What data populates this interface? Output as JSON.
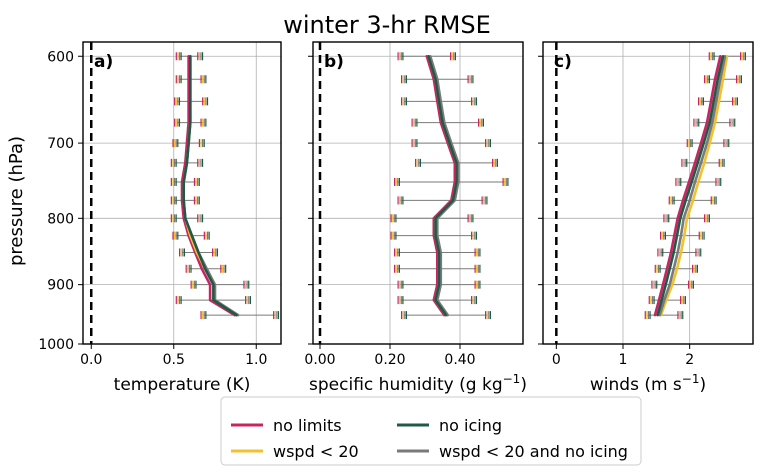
{
  "title": "winter 3-hr RMSE",
  "ylabel": "pressure (hPa)",
  "legend": {
    "placement": "bottom-center",
    "entries": [
      {
        "label": "no limits",
        "color": "#c8245f"
      },
      {
        "label": "no icing",
        "color": "#1f5a48"
      },
      {
        "label": "wspd < 20",
        "color": "#f2c12e"
      },
      {
        "label": "wspd < 20 and no icing",
        "color": "#7a7a7a"
      }
    ]
  },
  "chart_data": [
    {
      "type": "line",
      "panel_label": "a)",
      "xlabel": "temperature (K)",
      "ylabel": "pressure (hPa)",
      "xlim": [
        -0.05,
        1.15
      ],
      "ylim": [
        1000,
        585
      ],
      "y_scale": "log",
      "xticks": [
        "0.0",
        "0.5",
        "1.0"
      ],
      "yticks": [
        "600",
        "700",
        "800",
        "900",
        "1000"
      ],
      "grid": true,
      "y": [
        600,
        625,
        650,
        675,
        700,
        725,
        750,
        775,
        800,
        825,
        850,
        875,
        900,
        925,
        950
      ],
      "series": [
        {
          "name": "no limits",
          "values": [
            0.59,
            0.59,
            0.59,
            0.59,
            0.58,
            0.57,
            0.55,
            0.55,
            0.56,
            0.59,
            0.63,
            0.67,
            0.72,
            0.72,
            0.87
          ]
        },
        {
          "name": "no icing",
          "values": [
            0.6,
            0.6,
            0.6,
            0.6,
            0.59,
            0.58,
            0.56,
            0.56,
            0.57,
            0.61,
            0.65,
            0.69,
            0.74,
            0.74,
            0.88
          ]
        },
        {
          "name": "wspd < 20",
          "values": [
            0.6,
            0.6,
            0.6,
            0.6,
            0.59,
            0.58,
            0.56,
            0.56,
            0.57,
            0.6,
            0.64,
            0.69,
            0.74,
            0.74,
            0.89
          ]
        },
        {
          "name": "wspd < 20 and no icing",
          "values": [
            0.6,
            0.6,
            0.6,
            0.6,
            0.59,
            0.58,
            0.56,
            0.56,
            0.57,
            0.61,
            0.65,
            0.7,
            0.75,
            0.75,
            0.89
          ]
        }
      ],
      "ranges": [
        [
          0.53,
          0.66
        ],
        [
          0.53,
          0.68
        ],
        [
          0.52,
          0.69
        ],
        [
          0.52,
          0.68
        ],
        [
          0.51,
          0.67
        ],
        [
          0.5,
          0.66
        ],
        [
          0.5,
          0.64
        ],
        [
          0.5,
          0.64
        ],
        [
          0.5,
          0.66
        ],
        [
          0.51,
          0.7
        ],
        [
          0.55,
          0.75
        ],
        [
          0.59,
          0.8
        ],
        [
          0.62,
          0.94
        ],
        [
          0.53,
          0.95
        ],
        [
          0.68,
          1.12
        ]
      ],
      "dashed_reference_x": 0
    },
    {
      "type": "line",
      "panel_label": "b)",
      "xlabel": "specific humidity (g kg",
      "xlabel_sup": "−1",
      "xlabel_end": ")",
      "xlim": [
        -0.02,
        0.58
      ],
      "ylim": [
        1000,
        585
      ],
      "y_scale": "log",
      "xticks": [
        "0.00",
        "0.20",
        "0.40"
      ],
      "yticks": [
        "600",
        "700",
        "800",
        "900",
        "1000"
      ],
      "grid": true,
      "y": [
        600,
        625,
        650,
        675,
        700,
        725,
        750,
        775,
        800,
        825,
        850,
        875,
        900,
        925,
        950
      ],
      "series": [
        {
          "name": "no limits",
          "values": [
            0.305,
            0.325,
            0.335,
            0.345,
            0.365,
            0.385,
            0.385,
            0.375,
            0.325,
            0.325,
            0.335,
            0.335,
            0.335,
            0.325,
            0.355
          ]
        },
        {
          "name": "no icing",
          "values": [
            0.31,
            0.33,
            0.34,
            0.35,
            0.37,
            0.39,
            0.39,
            0.38,
            0.33,
            0.33,
            0.34,
            0.34,
            0.34,
            0.33,
            0.36
          ]
        },
        {
          "name": "wspd < 20",
          "values": [
            0.31,
            0.33,
            0.34,
            0.35,
            0.37,
            0.39,
            0.39,
            0.38,
            0.33,
            0.33,
            0.34,
            0.34,
            0.34,
            0.33,
            0.36
          ]
        },
        {
          "name": "wspd < 20 and no icing",
          "values": [
            0.315,
            0.335,
            0.345,
            0.355,
            0.375,
            0.395,
            0.395,
            0.385,
            0.335,
            0.335,
            0.345,
            0.345,
            0.345,
            0.335,
            0.365
          ]
        }
      ],
      "ranges": [
        [
          0.23,
          0.38
        ],
        [
          0.24,
          0.43
        ],
        [
          0.24,
          0.44
        ],
        [
          0.27,
          0.46
        ],
        [
          0.27,
          0.48
        ],
        [
          0.28,
          0.5
        ],
        [
          0.22,
          0.53
        ],
        [
          0.23,
          0.47
        ],
        [
          0.21,
          0.43
        ],
        [
          0.21,
          0.44
        ],
        [
          0.22,
          0.45
        ],
        [
          0.22,
          0.45
        ],
        [
          0.23,
          0.45
        ],
        [
          0.23,
          0.44
        ],
        [
          0.24,
          0.48
        ]
      ],
      "dashed_reference_x": 0
    },
    {
      "type": "line",
      "panel_label": "c)",
      "xlabel": "winds (m s",
      "xlabel_sup": "−1",
      "xlabel_end": ")",
      "xlim": [
        -0.2,
        2.95
      ],
      "ylim": [
        1000,
        585
      ],
      "y_scale": "log",
      "xticks": [
        "0",
        "1",
        "2"
      ],
      "yticks": [
        "600",
        "700",
        "800",
        "900",
        "1000"
      ],
      "grid": true,
      "y": [
        600,
        625,
        650,
        675,
        700,
        725,
        750,
        775,
        800,
        825,
        850,
        875,
        900,
        925,
        950
      ],
      "series": [
        {
          "name": "no limits",
          "values": [
            2.46,
            2.38,
            2.32,
            2.26,
            2.17,
            2.08,
            1.99,
            1.9,
            1.82,
            1.77,
            1.72,
            1.66,
            1.6,
            1.54,
            1.48
          ]
        },
        {
          "name": "no icing",
          "values": [
            2.5,
            2.42,
            2.36,
            2.3,
            2.21,
            2.12,
            2.03,
            1.94,
            1.86,
            1.81,
            1.76,
            1.7,
            1.64,
            1.58,
            1.52
          ]
        },
        {
          "name": "wspd < 20",
          "values": [
            2.56,
            2.5,
            2.44,
            2.38,
            2.3,
            2.22,
            2.13,
            2.05,
            1.96,
            1.92,
            1.87,
            1.81,
            1.74,
            1.65,
            1.57
          ]
        },
        {
          "name": "wspd < 20 and no icing",
          "values": [
            2.53,
            2.46,
            2.4,
            2.34,
            2.26,
            2.17,
            2.08,
            2.0,
            1.91,
            1.87,
            1.82,
            1.76,
            1.7,
            1.62,
            1.55
          ]
        }
      ],
      "ranges": [
        [
          2.33,
          2.8
        ],
        [
          2.26,
          2.74
        ],
        [
          2.17,
          2.68
        ],
        [
          2.1,
          2.64
        ],
        [
          2.0,
          2.55
        ],
        [
          1.92,
          2.48
        ],
        [
          1.83,
          2.43
        ],
        [
          1.73,
          2.36
        ],
        [
          1.65,
          2.26
        ],
        [
          1.6,
          2.18
        ],
        [
          1.56,
          2.13
        ],
        [
          1.52,
          2.08
        ],
        [
          1.47,
          2.02
        ],
        [
          1.43,
          1.9
        ],
        [
          1.37,
          1.86
        ]
      ],
      "dashed_reference_x": 0
    }
  ]
}
